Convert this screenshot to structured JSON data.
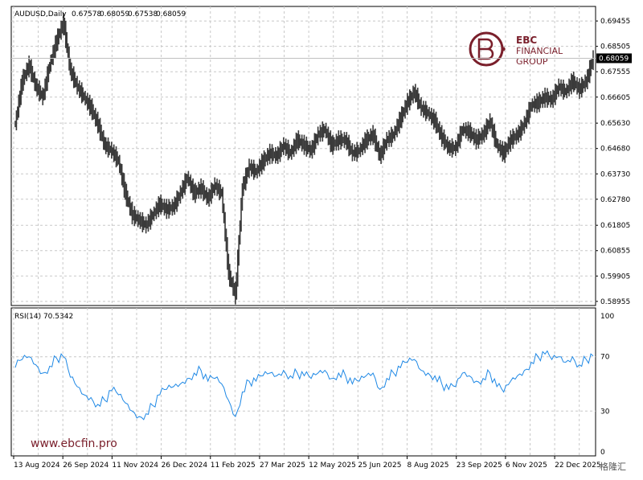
{
  "chart_data": [
    {
      "type": "ohlc",
      "symbol_label": "AUDUSD,Daily",
      "ohlc_values": [
        "0.67578",
        "0.68059",
        "0.67538",
        "0.68059"
      ],
      "current_price": 0.68059,
      "current_price_label": "0.68059",
      "ylim": [
        0.588,
        0.7
      ],
      "y_ticks": [
        0.69455,
        0.68505,
        0.67555,
        0.66605,
        0.6563,
        0.6468,
        0.6373,
        0.6278,
        0.61805,
        0.60855,
        0.59905,
        0.58955
      ],
      "y_tick_labels": [
        "0.69455",
        "0.68505",
        "0.67555",
        "0.66605",
        "0.65630",
        "0.64680",
        "0.63730",
        "0.62780",
        "0.61805",
        "0.60855",
        "0.59905",
        "0.58955"
      ],
      "grid": true,
      "x_tick_labels": [
        "13 Aug 2024",
        "26 Sep 2024",
        "11 Nov 2024",
        "26 Dec 2024",
        "11 Feb 2025",
        "27 Mar 2025",
        "12 May 2025",
        "25 Jun 2025",
        "8 Aug 2025",
        "23 Sep 2025",
        "6 Nov 2025",
        "22 Dec 2025"
      ],
      "x": [
        0,
        6,
        12,
        18,
        24,
        30,
        36,
        42,
        48,
        54,
        60,
        66,
        72,
        78,
        84,
        90,
        96,
        102,
        108,
        114,
        120,
        126,
        132,
        138,
        144,
        150,
        156,
        162,
        168,
        174,
        180,
        186,
        192,
        198,
        204,
        210,
        216,
        222,
        228,
        234,
        240,
        246,
        252,
        258,
        264,
        270,
        276,
        282,
        288,
        294,
        300,
        306,
        312,
        318,
        324,
        330,
        336,
        342,
        348,
        354,
        360,
        366,
        372,
        378,
        384,
        390,
        396,
        402,
        408,
        414,
        420,
        426,
        432,
        438,
        444,
        450,
        456,
        462,
        468,
        474,
        480,
        486,
        492,
        498,
        504
      ],
      "close": [
        0.656,
        0.672,
        0.678,
        0.67,
        0.666,
        0.678,
        0.687,
        0.694,
        0.676,
        0.67,
        0.666,
        0.662,
        0.656,
        0.648,
        0.646,
        0.642,
        0.63,
        0.622,
        0.62,
        0.618,
        0.622,
        0.626,
        0.624,
        0.625,
        0.63,
        0.636,
        0.63,
        0.632,
        0.628,
        0.633,
        0.63,
        0.6,
        0.592,
        0.632,
        0.64,
        0.638,
        0.642,
        0.645,
        0.644,
        0.648,
        0.645,
        0.65,
        0.648,
        0.646,
        0.652,
        0.654,
        0.648,
        0.65,
        0.65,
        0.645,
        0.646,
        0.65,
        0.652,
        0.644,
        0.65,
        0.652,
        0.658,
        0.664,
        0.668,
        0.662,
        0.66,
        0.657,
        0.651,
        0.647,
        0.647,
        0.654,
        0.653,
        0.65,
        0.652,
        0.657,
        0.648,
        0.645,
        0.65,
        0.652,
        0.656,
        0.663,
        0.664,
        0.666,
        0.665,
        0.67,
        0.668,
        0.672,
        0.669,
        0.672,
        0.6806
      ],
      "rsi_label": "RSI(14) 70.5342",
      "rsi_ylim": [
        0,
        100
      ],
      "rsi_y_ticks": [
        100,
        70,
        30,
        0
      ],
      "rsi_y_tick_labels": [
        "100",
        "70",
        "30",
        "0"
      ],
      "rsi": [
        62,
        68,
        70,
        64,
        58,
        63,
        69,
        70,
        55,
        48,
        42,
        40,
        35,
        38,
        45,
        42,
        36,
        30,
        26,
        28,
        34,
        42,
        46,
        48,
        50,
        54,
        58,
        60,
        52,
        54,
        50,
        38,
        26,
        44,
        52,
        52,
        56,
        58,
        56,
        60,
        56,
        58,
        56,
        54,
        58,
        60,
        54,
        58,
        56,
        50,
        52,
        56,
        58,
        46,
        54,
        58,
        62,
        66,
        68,
        60,
        58,
        56,
        50,
        46,
        48,
        58,
        56,
        52,
        54,
        58,
        48,
        44,
        52,
        56,
        60,
        66,
        70,
        72,
        68,
        70,
        66,
        70,
        64,
        68,
        70.5342
      ],
      "rsi_line_color": "#1e88e5",
      "bar_color": "#3a3a3a"
    }
  ],
  "brand": {
    "name_line1": "EBC",
    "name_line2": "FINANCIAL",
    "name_line3": "GROUP",
    "color": "#7a1f2b"
  },
  "watermark": "www.ebcfin.pro",
  "corner_mark": "格隆汇"
}
